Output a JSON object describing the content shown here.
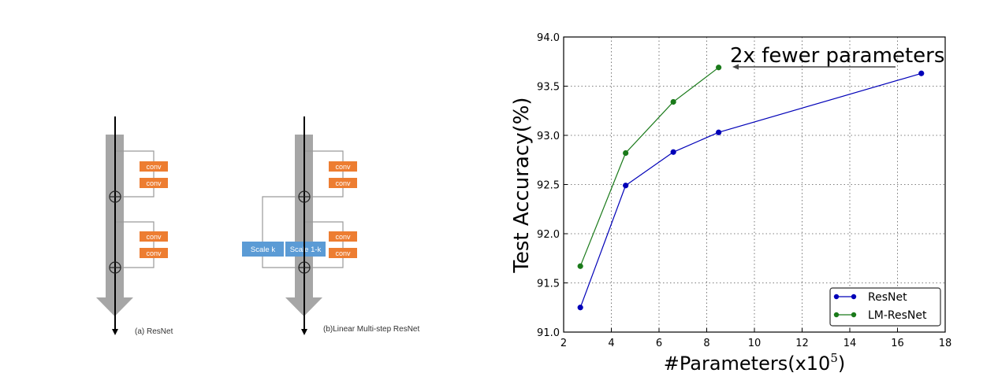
{
  "figure": {
    "panel_a": {
      "caption": "(a) ResNet",
      "blocks": [
        {
          "conv1": "conv",
          "conv2": "conv"
        },
        {
          "conv1": "conv",
          "conv2": "conv"
        }
      ]
    },
    "panel_b": {
      "caption": "(b)Linear Multi-step ResNet",
      "blocks": [
        {
          "conv1": "conv",
          "conv2": "conv"
        },
        {
          "conv1": "conv",
          "conv2": "conv"
        }
      ],
      "scale_k": "Scale k",
      "scale_1k": "Scale 1-k"
    },
    "colors": {
      "conv": "#ED7D31",
      "scale": "#5B9BD5",
      "trunk": "#A6A6A6",
      "resnet": "#0000B8",
      "lm_resnet": "#1A7A1A"
    }
  },
  "chart_data": {
    "type": "line",
    "title": "",
    "xlabel": "#Parameters(x10^5)",
    "xlabel_main": "#Parameters(x10",
    "xlabel_exp": "5",
    "xlabel_close": ")",
    "ylabel": "Test Accuracy(%)",
    "xlim": [
      2,
      18
    ],
    "ylim": [
      91.0,
      94.0
    ],
    "xticks": [
      "2",
      "4",
      "6",
      "8",
      "10",
      "12",
      "14",
      "16",
      "18"
    ],
    "yticks": [
      "91.0",
      "91.5",
      "92.0",
      "92.5",
      "93.0",
      "93.5",
      "94.0"
    ],
    "grid": true,
    "legend_position": "lower right",
    "annotation": "2x fewer parameters",
    "series": [
      {
        "name": "ResNet",
        "color": "#0000B8",
        "x": [
          2.7,
          4.6,
          6.6,
          8.5,
          17.0
        ],
        "y": [
          91.25,
          92.49,
          92.83,
          93.03,
          93.63
        ]
      },
      {
        "name": "LM-ResNet",
        "color": "#1A7A1A",
        "x": [
          2.7,
          4.6,
          6.6,
          8.5
        ],
        "y": [
          91.67,
          92.82,
          93.34,
          93.69
        ]
      }
    ]
  }
}
